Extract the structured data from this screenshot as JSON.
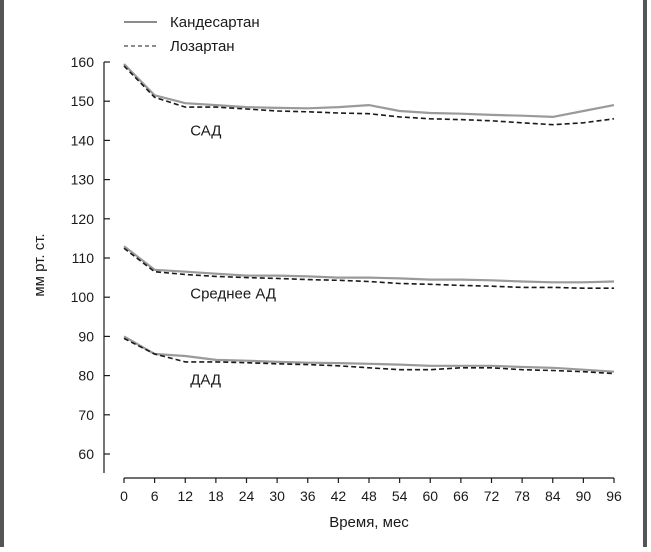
{
  "chart_data": {
    "type": "line",
    "xlabel": "Время, мес",
    "ylabel": "мм рт. ст.",
    "x": [
      0,
      6,
      12,
      18,
      24,
      30,
      36,
      42,
      48,
      54,
      60,
      66,
      72,
      78,
      84,
      90,
      96
    ],
    "xticks": [
      0,
      6,
      12,
      18,
      24,
      30,
      36,
      42,
      48,
      54,
      60,
      66,
      72,
      78,
      84,
      90,
      96
    ],
    "yticks": [
      60,
      70,
      80,
      90,
      100,
      110,
      120,
      130,
      140,
      150,
      160
    ],
    "xlim": [
      0,
      96
    ],
    "ylim": [
      60,
      160
    ],
    "grid": false,
    "legend_position": "top-left",
    "legend": [
      {
        "label": "Кандесартан",
        "style": "solid",
        "color": "#8c8c8c"
      },
      {
        "label": "Лозартан",
        "style": "dashed",
        "color": "#8c8c8c"
      }
    ],
    "groups": [
      {
        "label": "САД",
        "label_at": [
          12,
          142.5
        ],
        "series": [
          {
            "drug": "Кандесартан",
            "style": "solid",
            "x": [
              0,
              6,
              12,
              18,
              24,
              30,
              36,
              42,
              48,
              54,
              60,
              66,
              72,
              78,
              84,
              90,
              96
            ],
            "values": [
              159.5,
              151.5,
              149.5,
              149,
              148.5,
              148.3,
              148.2,
              148.5,
              149,
              147.5,
              147,
              146.8,
              146.5,
              146.3,
              146,
              147.5,
              149
            ]
          },
          {
            "drug": "Лозартан",
            "style": "dashed",
            "x": [
              0,
              6,
              12,
              18,
              24,
              30,
              36,
              42,
              48,
              54,
              60,
              66,
              72,
              78,
              84,
              90,
              96
            ],
            "values": [
              159,
              151,
              148.5,
              148.5,
              148,
              147.5,
              147.3,
              147,
              146.8,
              146,
              145.5,
              145.3,
              145,
              144.5,
              144,
              144.5,
              145.5
            ]
          }
        ]
      },
      {
        "label": "Среднее АД",
        "label_at": [
          12,
          101
        ],
        "series": [
          {
            "drug": "Кандесартан",
            "style": "solid",
            "x": [
              0,
              6,
              12,
              18,
              24,
              30,
              36,
              42,
              48,
              54,
              60,
              66,
              72,
              78,
              84,
              90,
              96
            ],
            "values": [
              113,
              107,
              106.5,
              106,
              105.5,
              105.5,
              105.3,
              105,
              105,
              104.8,
              104.5,
              104.5,
              104.3,
              104,
              103.8,
              103.8,
              104
            ]
          },
          {
            "drug": "Лозартан",
            "style": "dashed",
            "x": [
              0,
              6,
              12,
              18,
              24,
              30,
              36,
              42,
              48,
              54,
              60,
              66,
              72,
              78,
              84,
              90,
              96
            ],
            "values": [
              112.5,
              106.5,
              105.8,
              105.3,
              105,
              104.8,
              104.5,
              104.3,
              104,
              103.5,
              103.3,
              103,
              102.8,
              102.5,
              102.5,
              102.3,
              102.3
            ]
          }
        ]
      },
      {
        "label": "ДАД",
        "label_at": [
          12,
          79
        ],
        "series": [
          {
            "drug": "Кандесартан",
            "style": "solid",
            "x": [
              0,
              6,
              12,
              18,
              24,
              30,
              36,
              42,
              48,
              54,
              60,
              66,
              72,
              78,
              84,
              90,
              96
            ],
            "values": [
              90,
              85.5,
              85,
              84,
              83.8,
              83.5,
              83.3,
              83.2,
              83,
              82.8,
              82.5,
              82.5,
              82.5,
              82.2,
              82,
              81.5,
              81
            ]
          },
          {
            "drug": "Лозартан",
            "style": "dashed",
            "x": [
              0,
              6,
              12,
              18,
              24,
              30,
              36,
              42,
              48,
              54,
              60,
              66,
              72,
              78,
              84,
              90,
              96
            ],
            "values": [
              89.5,
              85.5,
              83.5,
              83.5,
              83.3,
              83,
              82.8,
              82.5,
              82,
              81.5,
              81.5,
              82,
              82,
              81.5,
              81.3,
              81,
              80.5
            ]
          }
        ]
      }
    ]
  }
}
